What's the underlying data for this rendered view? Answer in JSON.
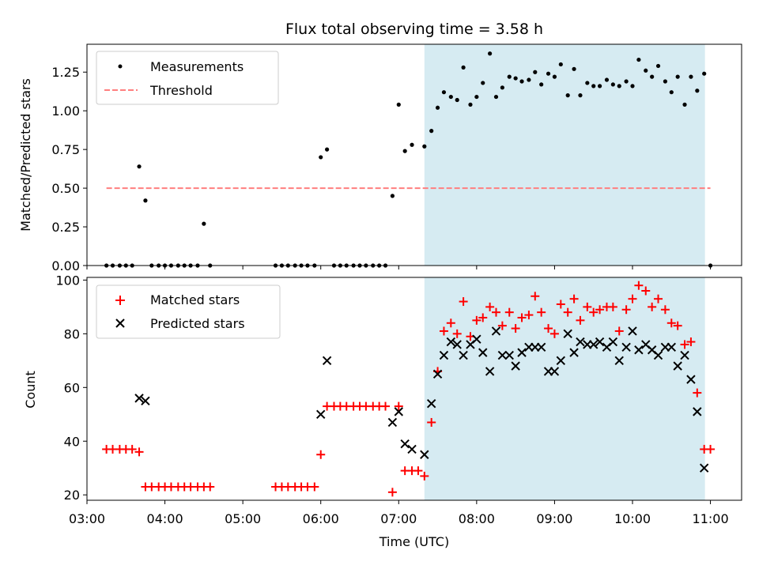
{
  "title": "Flux total observing time = 3.58 h",
  "colors": {
    "shade": "#add8e6",
    "threshold": "#ff7f7f",
    "matched": "#ff0000",
    "predicted": "#000000",
    "measurement": "#000000"
  },
  "chart_data": [
    {
      "type": "scatter",
      "ylabel": "Matched/Predicted stars",
      "xlim": [
        3.0,
        11.4
      ],
      "ylim": [
        0,
        1.43
      ],
      "yticks": [
        0.0,
        0.25,
        0.5,
        0.75,
        1.0,
        1.25
      ],
      "ytick_labels": [
        "0.00",
        "0.25",
        "0.50",
        "0.75",
        "1.00",
        "1.25"
      ],
      "shaded_x": [
        7.33,
        10.93
      ],
      "legend": {
        "position": "upper-left",
        "entries": [
          "Measurements",
          "Threshold"
        ]
      },
      "threshold": {
        "name": "Threshold",
        "y": 0.5,
        "x": [
          3.25,
          11.0
        ],
        "style": "dashed"
      },
      "series": [
        {
          "name": "Measurements",
          "points": [
            [
              3.25,
              0
            ],
            [
              3.33,
              0
            ],
            [
              3.42,
              0
            ],
            [
              3.5,
              0
            ],
            [
              3.58,
              0
            ],
            [
              3.67,
              0.64
            ],
            [
              3.75,
              0.42
            ],
            [
              3.83,
              0
            ],
            [
              3.92,
              0
            ],
            [
              4.0,
              0
            ],
            [
              4.08,
              0
            ],
            [
              4.17,
              0
            ],
            [
              4.25,
              0
            ],
            [
              4.33,
              0
            ],
            [
              4.42,
              0
            ],
            [
              4.5,
              0.27
            ],
            [
              4.58,
              0
            ],
            [
              5.42,
              0
            ],
            [
              5.5,
              0
            ],
            [
              5.58,
              0
            ],
            [
              5.67,
              0
            ],
            [
              5.75,
              0
            ],
            [
              5.83,
              0
            ],
            [
              5.92,
              0
            ],
            [
              6.0,
              0.7
            ],
            [
              6.08,
              0.75
            ],
            [
              6.17,
              0
            ],
            [
              6.25,
              0
            ],
            [
              6.33,
              0
            ],
            [
              6.42,
              0
            ],
            [
              6.5,
              0
            ],
            [
              6.58,
              0
            ],
            [
              6.67,
              0
            ],
            [
              6.75,
              0
            ],
            [
              6.83,
              0
            ],
            [
              6.92,
              0.45
            ],
            [
              7.0,
              1.04
            ],
            [
              7.08,
              0.74
            ],
            [
              7.17,
              0.78
            ],
            [
              7.33,
              0.77
            ],
            [
              7.42,
              0.87
            ],
            [
              7.5,
              1.02
            ],
            [
              7.58,
              1.12
            ],
            [
              7.67,
              1.09
            ],
            [
              7.75,
              1.07
            ],
            [
              7.83,
              1.28
            ],
            [
              7.92,
              1.04
            ],
            [
              8.0,
              1.09
            ],
            [
              8.08,
              1.18
            ],
            [
              8.17,
              1.37
            ],
            [
              8.25,
              1.09
            ],
            [
              8.33,
              1.15
            ],
            [
              8.42,
              1.22
            ],
            [
              8.5,
              1.21
            ],
            [
              8.58,
              1.19
            ],
            [
              8.67,
              1.2
            ],
            [
              8.75,
              1.25
            ],
            [
              8.83,
              1.17
            ],
            [
              8.92,
              1.24
            ],
            [
              9.0,
              1.22
            ],
            [
              9.08,
              1.3
            ],
            [
              9.17,
              1.1
            ],
            [
              9.25,
              1.27
            ],
            [
              9.33,
              1.1
            ],
            [
              9.42,
              1.18
            ],
            [
              9.5,
              1.16
            ],
            [
              9.58,
              1.16
            ],
            [
              9.67,
              1.2
            ],
            [
              9.75,
              1.17
            ],
            [
              9.83,
              1.16
            ],
            [
              9.92,
              1.19
            ],
            [
              10.0,
              1.16
            ],
            [
              10.08,
              1.33
            ],
            [
              10.17,
              1.26
            ],
            [
              10.25,
              1.22
            ],
            [
              10.33,
              1.29
            ],
            [
              10.42,
              1.19
            ],
            [
              10.5,
              1.12
            ],
            [
              10.58,
              1.22
            ],
            [
              10.67,
              1.04
            ],
            [
              10.75,
              1.22
            ],
            [
              10.83,
              1.13
            ],
            [
              10.92,
              1.24
            ],
            [
              11.0,
              0
            ]
          ]
        }
      ]
    },
    {
      "type": "scatter",
      "xlabel": "Time (UTC)",
      "ylabel": "Count",
      "xlim": [
        3.0,
        11.4
      ],
      "ylim": [
        18,
        101
      ],
      "yticks": [
        20,
        40,
        60,
        80,
        100
      ],
      "ytick_labels": [
        "20",
        "40",
        "60",
        "80",
        "100"
      ],
      "xticks": [
        3,
        4,
        5,
        6,
        7,
        8,
        9,
        10,
        11
      ],
      "xtick_labels": [
        "03:00",
        "04:00",
        "05:00",
        "06:00",
        "07:00",
        "08:00",
        "09:00",
        "10:00",
        "11:00"
      ],
      "shaded_x": [
        7.33,
        10.93
      ],
      "legend": {
        "position": "upper-left",
        "entries": [
          "Matched stars",
          "Predicted stars"
        ]
      },
      "series": [
        {
          "name": "Matched stars",
          "marker": "plus",
          "points": [
            [
              3.25,
              37
            ],
            [
              3.33,
              37
            ],
            [
              3.42,
              37
            ],
            [
              3.5,
              37
            ],
            [
              3.58,
              37
            ],
            [
              3.67,
              36
            ],
            [
              3.75,
              23
            ],
            [
              3.83,
              23
            ],
            [
              3.92,
              23
            ],
            [
              4.0,
              23
            ],
            [
              4.08,
              23
            ],
            [
              4.17,
              23
            ],
            [
              4.25,
              23
            ],
            [
              4.33,
              23
            ],
            [
              4.42,
              23
            ],
            [
              4.5,
              23
            ],
            [
              4.58,
              23
            ],
            [
              5.42,
              23
            ],
            [
              5.5,
              23
            ],
            [
              5.58,
              23
            ],
            [
              5.67,
              23
            ],
            [
              5.75,
              23
            ],
            [
              5.83,
              23
            ],
            [
              5.92,
              23
            ],
            [
              6.0,
              35
            ],
            [
              6.08,
              53
            ],
            [
              6.17,
              53
            ],
            [
              6.25,
              53
            ],
            [
              6.33,
              53
            ],
            [
              6.42,
              53
            ],
            [
              6.5,
              53
            ],
            [
              6.58,
              53
            ],
            [
              6.67,
              53
            ],
            [
              6.75,
              53
            ],
            [
              6.83,
              53
            ],
            [
              6.92,
              21
            ],
            [
              7.0,
              53
            ],
            [
              7.08,
              29
            ],
            [
              7.17,
              29
            ],
            [
              7.25,
              29
            ],
            [
              7.33,
              27
            ],
            [
              7.42,
              47
            ],
            [
              7.5,
              66
            ],
            [
              7.58,
              81
            ],
            [
              7.67,
              84
            ],
            [
              7.75,
              80
            ],
            [
              7.83,
              92
            ],
            [
              7.92,
              79
            ],
            [
              8.0,
              85
            ],
            [
              8.08,
              86
            ],
            [
              8.17,
              90
            ],
            [
              8.25,
              88
            ],
            [
              8.33,
              83
            ],
            [
              8.42,
              88
            ],
            [
              8.5,
              82
            ],
            [
              8.58,
              86
            ],
            [
              8.67,
              87
            ],
            [
              8.75,
              94
            ],
            [
              8.83,
              88
            ],
            [
              8.92,
              82
            ],
            [
              9.0,
              80
            ],
            [
              9.08,
              91
            ],
            [
              9.17,
              88
            ],
            [
              9.25,
              93
            ],
            [
              9.33,
              85
            ],
            [
              9.42,
              90
            ],
            [
              9.5,
              88
            ],
            [
              9.58,
              89
            ],
            [
              9.67,
              90
            ],
            [
              9.75,
              90
            ],
            [
              9.83,
              81
            ],
            [
              9.92,
              89
            ],
            [
              10.0,
              93
            ],
            [
              10.08,
              98
            ],
            [
              10.17,
              96
            ],
            [
              10.25,
              90
            ],
            [
              10.33,
              93
            ],
            [
              10.42,
              89
            ],
            [
              10.5,
              84
            ],
            [
              10.58,
              83
            ],
            [
              10.67,
              76
            ],
            [
              10.75,
              77
            ],
            [
              10.83,
              58
            ],
            [
              10.92,
              37
            ],
            [
              11.0,
              37
            ]
          ]
        },
        {
          "name": "Predicted stars",
          "marker": "x",
          "points": [
            [
              3.67,
              56
            ],
            [
              3.75,
              55
            ],
            [
              6.0,
              50
            ],
            [
              6.08,
              70
            ],
            [
              6.92,
              47
            ],
            [
              7.0,
              51
            ],
            [
              7.08,
              39
            ],
            [
              7.17,
              37
            ],
            [
              7.33,
              35
            ],
            [
              7.42,
              54
            ],
            [
              7.5,
              65
            ],
            [
              7.58,
              72
            ],
            [
              7.67,
              77
            ],
            [
              7.75,
              76
            ],
            [
              7.83,
              72
            ],
            [
              7.92,
              76
            ],
            [
              8.0,
              78
            ],
            [
              8.08,
              73
            ],
            [
              8.17,
              66
            ],
            [
              8.25,
              81
            ],
            [
              8.33,
              72
            ],
            [
              8.42,
              72
            ],
            [
              8.5,
              68
            ],
            [
              8.58,
              73
            ],
            [
              8.67,
              75
            ],
            [
              8.75,
              75
            ],
            [
              8.83,
              75
            ],
            [
              8.92,
              66
            ],
            [
              9.0,
              66
            ],
            [
              9.08,
              70
            ],
            [
              9.17,
              80
            ],
            [
              9.25,
              73
            ],
            [
              9.33,
              77
            ],
            [
              9.42,
              76
            ],
            [
              9.5,
              76
            ],
            [
              9.58,
              77
            ],
            [
              9.67,
              75
            ],
            [
              9.75,
              77
            ],
            [
              9.83,
              70
            ],
            [
              9.92,
              75
            ],
            [
              10.0,
              81
            ],
            [
              10.08,
              74
            ],
            [
              10.17,
              76
            ],
            [
              10.25,
              74
            ],
            [
              10.33,
              72
            ],
            [
              10.42,
              75
            ],
            [
              10.5,
              75
            ],
            [
              10.58,
              68
            ],
            [
              10.67,
              72
            ],
            [
              10.75,
              63
            ],
            [
              10.83,
              51
            ],
            [
              10.92,
              30
            ]
          ]
        }
      ]
    }
  ]
}
